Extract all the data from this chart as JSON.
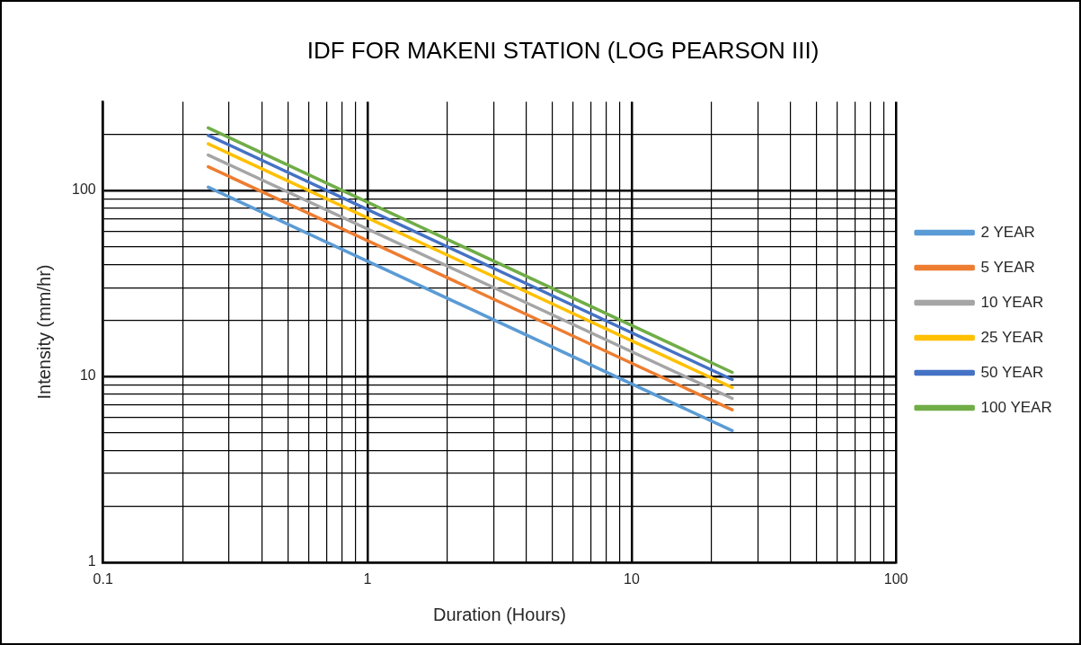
{
  "chart_data": {
    "type": "line",
    "title": "IDF FOR MAKENI STATION (LOG PEARSON III)",
    "xlabel": "Duration (Hours)",
    "ylabel": "Intensity (mm/hr)",
    "x": [
      0.25,
      24
    ],
    "series": [
      {
        "name": "2 YEAR",
        "color": "#5b9bd5",
        "values": [
          104,
          5.1
        ]
      },
      {
        "name": "5 YEAR",
        "color": "#ed7d31",
        "values": [
          134,
          6.6
        ]
      },
      {
        "name": "10 YEAR",
        "color": "#a5a5a5",
        "values": [
          155,
          7.6
        ]
      },
      {
        "name": "25 YEAR",
        "color": "#ffc000",
        "values": [
          178,
          8.7
        ]
      },
      {
        "name": "50 YEAR",
        "color": "#4472c4",
        "values": [
          198,
          9.6
        ]
      },
      {
        "name": "100 YEAR",
        "color": "#70ad47",
        "values": [
          217,
          10.5
        ]
      }
    ],
    "log": "xy",
    "grid": true,
    "legend": "right",
    "marker": "none",
    "line_style": "solid",
    "xlim": [
      0.1,
      100
    ],
    "xticks": [
      {
        "value": 0.1,
        "label": "0.1"
      },
      {
        "value": 0.2,
        "label": null
      },
      {
        "value": 0.3,
        "label": null
      },
      {
        "value": 0.4,
        "label": null
      },
      {
        "value": 0.5,
        "label": null
      },
      {
        "value": 0.6,
        "label": null
      },
      {
        "value": 0.7,
        "label": null
      },
      {
        "value": 0.8,
        "label": null
      },
      {
        "value": 0.9,
        "label": null
      },
      1,
      {
        "value": 2,
        "label": null
      },
      {
        "value": 3,
        "label": null
      },
      {
        "value": 4,
        "label": null
      },
      {
        "value": 5,
        "label": null
      },
      {
        "value": 6,
        "label": null
      },
      {
        "value": 7,
        "label": null
      },
      {
        "value": 8,
        "label": null
      },
      {
        "value": 9,
        "label": null
      },
      10,
      {
        "value": 20,
        "label": null
      },
      {
        "value": 30,
        "label": null
      },
      {
        "value": 40,
        "label": null
      },
      {
        "value": 50,
        "label": null
      },
      {
        "value": 60,
        "label": null
      },
      {
        "value": 70,
        "label": null
      },
      {
        "value": 80,
        "label": null
      },
      {
        "value": 90,
        "label": null
      },
      100
    ],
    "ylim": [
      1,
      300
    ],
    "yticks": [
      1,
      {
        "value": 2,
        "label": null
      },
      {
        "value": 3,
        "label": null
      },
      {
        "value": 4,
        "label": null
      },
      {
        "value": 5,
        "label": null
      },
      {
        "value": 6,
        "label": null
      },
      {
        "value": 7,
        "label": null
      },
      {
        "value": 8,
        "label": null
      },
      {
        "value": 9,
        "label": null
      },
      10,
      {
        "value": 20,
        "label": null
      },
      {
        "value": 30,
        "label": null
      },
      {
        "value": 40,
        "label": null
      },
      {
        "value": 50,
        "label": null
      },
      {
        "value": 60,
        "label": null
      },
      {
        "value": 70,
        "label": null
      },
      {
        "value": 80,
        "label": null
      },
      {
        "value": 90,
        "label": null
      },
      100,
      {
        "value": 200,
        "label": null
      }
    ]
  }
}
